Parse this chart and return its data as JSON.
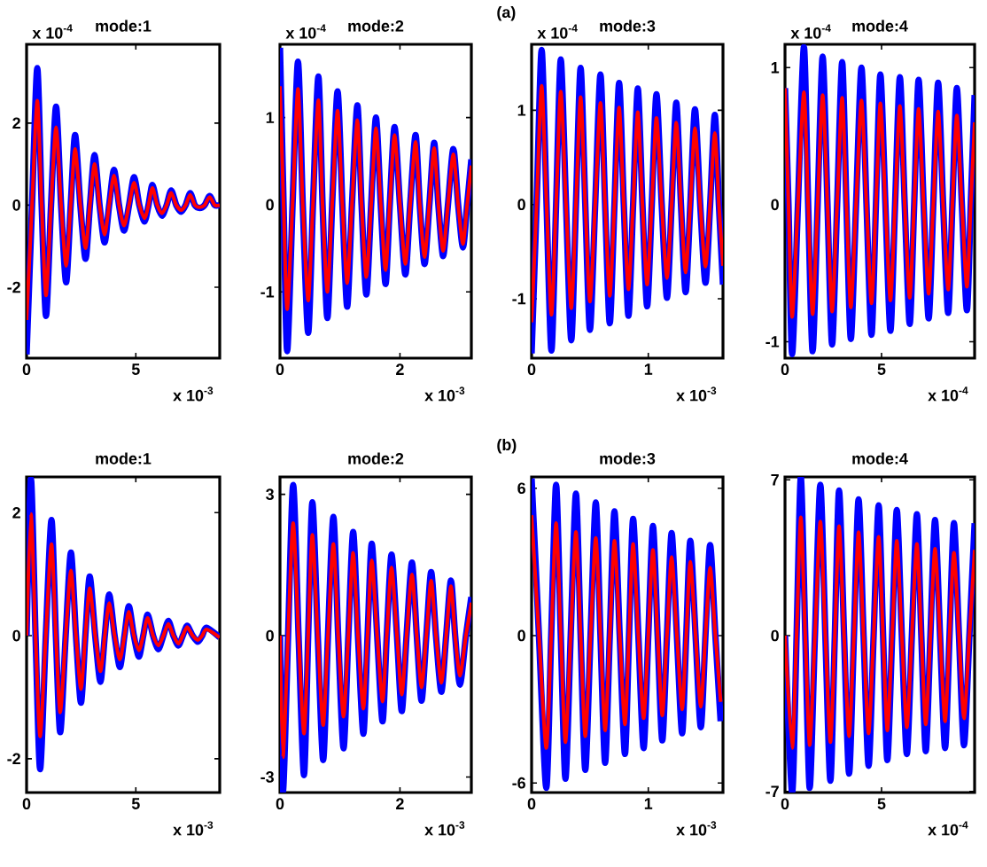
{
  "chart_data": [
    {
      "type": "line",
      "title": "mode:1",
      "xlabel": "x 10$^{-3}$",
      "ylabel": "x 10$^{-4}$",
      "xlim": [
        0,
        8.84
      ],
      "ylim": [
        -3.73,
        3.92
      ],
      "xticks": [
        0,
        5
      ],
      "yticks": [
        -2,
        0,
        2
      ],
      "x": [
        0,
        0.25,
        0.49,
        0.69,
        0.89,
        1.12,
        1.35,
        1.58,
        1.81,
        2.02,
        2.22,
        2.46,
        2.7,
        2.9,
        3.11,
        3.34,
        3.57,
        3.78,
        4.0,
        4.23,
        4.46,
        4.69,
        4.92,
        5.16,
        5.4,
        5.58,
        5.76,
        5.98,
        6.2,
        6.41,
        6.62,
        6.85,
        7.08,
        7.28,
        7.49,
        7.7,
        7.92,
        8.15,
        8.38,
        8.61,
        8.84
      ],
      "series": [
        {
          "color": "#0000ff",
          "values": [
            -3.64,
            0,
            3.34,
            0,
            -2.7,
            0,
            2.4,
            0,
            -1.88,
            0,
            1.71,
            0,
            -1.31,
            0,
            1.22,
            0,
            -0.91,
            0,
            0.86,
            0,
            -0.62,
            0,
            0.68,
            0,
            -0.4,
            0,
            0.49,
            0,
            -0.26,
            0,
            0.36,
            0,
            -0.16,
            0,
            0.29,
            0,
            -0.07,
            0,
            0.22,
            0,
            0
          ]
        },
        {
          "color": "#ff0000",
          "values": [
            -2.8,
            0,
            2.55,
            0,
            -2.2,
            0,
            1.9,
            0,
            -1.48,
            0,
            1.37,
            0,
            -1.05,
            0,
            1.0,
            0,
            -0.72,
            0,
            0.72,
            0,
            -0.5,
            0,
            0.55,
            0,
            -0.32,
            0,
            0.42,
            0,
            -0.2,
            0,
            0.3,
            0,
            -0.12,
            0,
            0.25,
            0,
            -0.05,
            0,
            0.2,
            0,
            0
          ]
        }
      ]
    },
    {
      "type": "line",
      "title": "mode:2",
      "xlabel": "x 10$^{-3}$",
      "ylabel": "x 10$^{-4}$",
      "annotations": [
        "(a)"
      ],
      "xlim": [
        0,
        3.19
      ],
      "ylim": [
        -1.76,
        1.84
      ],
      "xticks": [
        0,
        2
      ],
      "yticks": [
        -1,
        0,
        1
      ],
      "x": [
        0,
        0.06,
        0.12,
        0.21,
        0.3,
        0.38,
        0.47,
        0.55,
        0.64,
        0.71,
        0.79,
        0.87,
        0.96,
        1.04,
        1.12,
        1.2,
        1.29,
        1.36,
        1.44,
        1.52,
        1.6,
        1.68,
        1.76,
        1.83,
        1.91,
        2.0,
        2.09,
        2.17,
        2.26,
        2.33,
        2.41,
        2.49,
        2.57,
        2.64,
        2.72,
        2.8,
        2.89,
        2.97,
        3.05,
        3.12,
        3.19
      ],
      "series": [
        {
          "color": "#0000ff",
          "values": [
            1.8,
            0,
            -1.68,
            0,
            1.64,
            0,
            -1.47,
            0,
            1.47,
            0,
            -1.3,
            0,
            1.3,
            0,
            -1.17,
            0,
            1.14,
            0,
            -1.03,
            0,
            1.0,
            0,
            -0.91,
            0,
            0.89,
            0,
            -0.8,
            0,
            0.8,
            0,
            -0.68,
            0,
            0.71,
            0,
            -0.59,
            0,
            0.64,
            0,
            -0.49,
            0,
            0.52
          ]
        },
        {
          "color": "#ff0000",
          "values": [
            1.36,
            0,
            -1.2,
            0,
            1.33,
            0,
            -1.1,
            0,
            1.2,
            0,
            -1.0,
            0,
            1.08,
            0,
            -0.9,
            0,
            0.97,
            0,
            -0.83,
            0,
            0.88,
            0,
            -0.75,
            0,
            0.8,
            0,
            -0.68,
            0,
            0.72,
            0,
            -0.6,
            0,
            0.65,
            0,
            -0.53,
            0,
            0.58,
            0,
            -0.45,
            0,
            0.45
          ]
        }
      ]
    },
    {
      "type": "line",
      "title": "mode:3",
      "xlabel": "x 10$^{-3}$",
      "ylabel": "x 10$^{-4}$",
      "xlim": [
        0,
        1.64
      ],
      "ylim": [
        -1.63,
        1.7
      ],
      "xticks": [
        0,
        1
      ],
      "yticks": [
        -1,
        0,
        1
      ],
      "x": [
        0,
        0.043,
        0.086,
        0.128,
        0.17,
        0.21,
        0.25,
        0.295,
        0.34,
        0.38,
        0.42,
        0.46,
        0.5,
        0.545,
        0.59,
        0.63,
        0.67,
        0.71,
        0.75,
        0.79,
        0.83,
        0.87,
        0.91,
        0.95,
        0.99,
        1.03,
        1.07,
        1.115,
        1.16,
        1.2,
        1.24,
        1.28,
        1.32,
        1.36,
        1.4,
        1.445,
        1.49,
        1.53,
        1.57,
        1.605,
        1.64
      ],
      "series": [
        {
          "color": "#0000ff",
          "values": [
            -1.58,
            0,
            1.64,
            0,
            -1.55,
            0,
            1.54,
            0,
            -1.44,
            0,
            1.45,
            0,
            -1.33,
            0,
            1.38,
            0,
            -1.26,
            0,
            1.29,
            0,
            -1.18,
            0,
            1.23,
            0,
            -1.08,
            0,
            1.17,
            0,
            -0.99,
            0,
            1.08,
            0,
            -0.93,
            0,
            1.01,
            0,
            -0.83,
            0,
            0.95,
            0,
            -0.85
          ]
        },
        {
          "color": "#ff0000",
          "values": [
            -1.25,
            0,
            1.26,
            0,
            -1.17,
            0,
            1.2,
            0,
            -1.1,
            0,
            1.14,
            0,
            -1.03,
            0,
            1.08,
            0,
            -0.97,
            0,
            1.03,
            0,
            -0.9,
            0,
            0.98,
            0,
            -0.85,
            0,
            0.92,
            0,
            -0.78,
            0,
            0.87,
            0,
            -0.72,
            0,
            0.81,
            0,
            -0.66,
            0,
            0.76,
            0,
            -0.65
          ]
        }
      ]
    },
    {
      "type": "line",
      "title": "mode:4",
      "xlabel": "x 10$^{-4}$",
      "ylabel": "x 10$^{-4}$",
      "xlim": [
        0,
        9.82
      ],
      "ylim": [
        -1.12,
        1.17
      ],
      "xticks": [
        0,
        5
      ],
      "yticks": [
        -1,
        0,
        1
      ],
      "x": [
        0,
        0.18,
        0.37,
        0.67,
        0.98,
        1.2,
        1.43,
        1.69,
        1.95,
        2.2,
        2.44,
        2.7,
        2.96,
        3.18,
        3.41,
        3.68,
        3.96,
        4.22,
        4.48,
        4.71,
        4.94,
        5.2,
        5.46,
        5.7,
        5.95,
        6.2,
        6.46,
        6.69,
        6.92,
        7.18,
        7.44,
        7.68,
        7.93,
        8.19,
        8.45,
        8.67,
        8.9,
        9.16,
        9.42,
        9.62,
        9.82
      ],
      "series": [
        {
          "color": "#0000ff",
          "values": [
            0.85,
            0,
            -1.09,
            0,
            1.15,
            0,
            -1.07,
            0,
            1.08,
            0,
            -1.02,
            0,
            1.04,
            0,
            -0.98,
            0,
            1.0,
            0,
            -0.95,
            0,
            0.95,
            0,
            -0.92,
            0,
            0.93,
            0,
            -0.87,
            0,
            0.91,
            0,
            -0.83,
            0,
            0.89,
            0,
            -0.79,
            0,
            0.85,
            0,
            -0.77,
            0,
            0.8
          ]
        },
        {
          "color": "#ff0000",
          "values": [
            0.85,
            0,
            -0.82,
            0,
            0.82,
            0,
            -0.8,
            0,
            0.8,
            0,
            -0.78,
            0,
            0.78,
            0,
            -0.75,
            0,
            0.76,
            0,
            -0.72,
            0,
            0.74,
            0,
            -0.7,
            0,
            0.72,
            0,
            -0.68,
            0,
            0.7,
            0,
            -0.65,
            0,
            0.68,
            0,
            -0.62,
            0,
            0.65,
            0,
            -0.6,
            0,
            0.6
          ]
        }
      ]
    },
    {
      "type": "line",
      "title": "mode:1",
      "xlabel": "x 10$^{-3}$",
      "xlim": [
        0,
        8.84
      ],
      "ylim": [
        -2.55,
        2.58
      ],
      "xticks": [
        0,
        5
      ],
      "yticks": [
        -2,
        0,
        2
      ],
      "x": [
        0,
        0.2,
        0.41,
        0.62,
        0.88,
        1.14,
        1.34,
        1.54,
        1.79,
        2.03,
        2.26,
        2.49,
        2.69,
        2.89,
        3.14,
        3.38,
        3.58,
        3.78,
        4.03,
        4.27,
        4.48,
        4.68,
        4.91,
        5.14,
        5.34,
        5.54,
        5.79,
        6.03,
        6.26,
        6.49,
        6.72,
        6.95,
        7.15,
        7.35,
        7.6,
        7.84,
        8.04,
        8.24,
        8.84
      ],
      "series": [
        {
          "color": "#0000ff",
          "values": [
            0,
            2.55,
            0,
            -2.17,
            0,
            1.88,
            0,
            -1.57,
            0,
            1.35,
            0,
            -1.09,
            0,
            0.96,
            0,
            -0.75,
            0,
            0.67,
            0,
            -0.51,
            0,
            0.48,
            0,
            -0.34,
            0,
            0.34,
            0,
            -0.22,
            0,
            0.24,
            0,
            -0.16,
            0,
            0.16,
            0,
            -0.1,
            0,
            0.13,
            -0.03
          ]
        },
        {
          "color": "#ff0000",
          "values": [
            0,
            1.98,
            0,
            -1.64,
            0,
            1.49,
            0,
            -1.25,
            0,
            1.06,
            0,
            -0.87,
            0,
            0.77,
            0,
            -0.58,
            0,
            0.53,
            0,
            -0.39,
            0,
            0.39,
            0,
            -0.24,
            0,
            0.29,
            0,
            -0.16,
            0,
            0.19,
            0,
            -0.13,
            0,
            0.14,
            0,
            -0.07,
            0,
            0.1,
            -0.03
          ]
        }
      ]
    },
    {
      "type": "line",
      "title": "mode:2",
      "xlabel": "x 10$^{-3}$",
      "annotations": [
        "(b)"
      ],
      "xlim": [
        0,
        3.19
      ],
      "ylim": [
        -3.33,
        3.37
      ],
      "xticks": [
        0,
        2
      ],
      "yticks": [
        -3,
        0,
        3
      ],
      "x": [
        0,
        0.05,
        0.135,
        0.22,
        0.31,
        0.4,
        0.47,
        0.54,
        0.63,
        0.72,
        0.8,
        0.89,
        0.97,
        1.06,
        1.14,
        1.22,
        1.3,
        1.39,
        1.46,
        1.53,
        1.62,
        1.71,
        1.78,
        1.86,
        1.95,
        2.03,
        2.11,
        2.2,
        2.28,
        2.36,
        2.44,
        2.52,
        2.6,
        2.69,
        2.77,
        2.85,
        2.92,
        3.0,
        3.1,
        3.19
      ],
      "series": [
        {
          "color": "#0000ff",
          "values": [
            0,
            -3.3,
            0,
            3.2,
            0,
            -2.96,
            0,
            2.83,
            0,
            -2.64,
            0,
            2.52,
            0,
            -2.39,
            0,
            2.2,
            0,
            -2.08,
            0,
            1.95,
            0,
            -1.82,
            0,
            1.72,
            0,
            -1.6,
            0,
            1.55,
            0,
            -1.38,
            0,
            1.35,
            0,
            -1.19,
            0,
            1.17,
            0,
            -1.04,
            0,
            0.82
          ]
        },
        {
          "color": "#ff0000",
          "values": [
            0,
            -2.58,
            0,
            2.39,
            0,
            -2.08,
            0,
            2.14,
            0,
            -1.9,
            0,
            1.95,
            0,
            -1.72,
            0,
            1.76,
            0,
            -1.55,
            0,
            1.6,
            0,
            -1.4,
            0,
            1.45,
            0,
            -1.25,
            0,
            1.3,
            0,
            -1.1,
            0,
            1.17,
            0,
            -1.0,
            0,
            1.05,
            0,
            -0.85,
            0,
            0.7
          ]
        }
      ]
    },
    {
      "type": "line",
      "title": "mode:3",
      "xlabel": "x 10$^{-3}$",
      "xlim": [
        0,
        1.64
      ],
      "ylim": [
        -6.39,
        6.46
      ],
      "xticks": [
        0,
        1
      ],
      "yticks": [
        -6,
        0,
        6
      ],
      "x": [
        0,
        0.063,
        0.126,
        0.168,
        0.21,
        0.25,
        0.29,
        0.335,
        0.38,
        0.42,
        0.46,
        0.505,
        0.55,
        0.59,
        0.63,
        0.67,
        0.71,
        0.755,
        0.8,
        0.835,
        0.87,
        0.915,
        0.96,
        1.0,
        1.04,
        1.08,
        1.12,
        1.16,
        1.2,
        1.245,
        1.29,
        1.325,
        1.36,
        1.405,
        1.45,
        1.49,
        1.53,
        1.575,
        1.62
      ],
      "series": [
        {
          "color": "#0000ff",
          "values": [
            6.4,
            0,
            -6.2,
            0,
            6.14,
            0,
            -5.83,
            0,
            5.78,
            0,
            -5.47,
            0,
            5.42,
            0,
            -5.18,
            0,
            5.06,
            0,
            -4.82,
            0,
            4.75,
            0,
            -4.58,
            0,
            4.46,
            0,
            -4.27,
            0,
            4.17,
            0,
            -3.98,
            0,
            3.86,
            0,
            -3.73,
            0,
            3.69,
            0,
            -3.49
          ]
        },
        {
          "color": "#ff0000",
          "values": [
            4.9,
            0,
            -4.58,
            0,
            4.58,
            0,
            -4.34,
            0,
            4.22,
            0,
            -4.1,
            0,
            3.98,
            0,
            -3.86,
            0,
            3.86,
            0,
            -3.62,
            0,
            3.73,
            0,
            -3.37,
            0,
            3.49,
            0,
            -3.25,
            0,
            3.2,
            0,
            -3.01,
            0,
            3.01,
            0,
            -2.9,
            0,
            2.77,
            0,
            -2.7
          ]
        }
      ]
    },
    {
      "type": "line",
      "title": "mode:4",
      "xlabel": "x 10$^{-4}$",
      "xlim": [
        0,
        9.82
      ],
      "ylim": [
        -7.05,
        7.13
      ],
      "xticks": [
        0,
        5
      ],
      "yticks": [
        -7,
        0,
        7
      ],
      "x": [
        0,
        0.37,
        0.6,
        0.82,
        1.05,
        1.28,
        1.55,
        1.83,
        2.09,
        2.35,
        2.58,
        2.8,
        3.06,
        3.32,
        3.57,
        3.81,
        4.07,
        4.33,
        4.59,
        4.85,
        5.08,
        5.3,
        5.55,
        5.79,
        6.05,
        6.31,
        6.57,
        6.83,
        7.06,
        7.29,
        7.53,
        7.77,
        8.03,
        8.29,
        8.52,
        8.75,
        9.01,
        9.27,
        9.55,
        9.82
      ],
      "series": [
        {
          "color": "#0000ff",
          "values": [
            0,
            -7.05,
            0,
            7.1,
            0,
            -6.84,
            0,
            6.78,
            0,
            -6.52,
            0,
            6.52,
            0,
            -6.2,
            0,
            6.12,
            0,
            -5.85,
            0,
            5.85,
            0,
            -5.59,
            0,
            5.64,
            0,
            -5.32,
            0,
            5.45,
            0,
            -5.19,
            0,
            5.19,
            0,
            -5.05,
            0,
            5.05,
            0,
            -4.92,
            0,
            5.05
          ]
        },
        {
          "color": "#ff0000",
          "values": [
            0,
            -5.05,
            0,
            5.32,
            0,
            -4.92,
            0,
            5.13,
            0,
            -4.79,
            0,
            4.92,
            0,
            -4.52,
            0,
            4.65,
            0,
            -4.39,
            0,
            4.44,
            0,
            -4.26,
            0,
            4.26,
            0,
            -4.12,
            0,
            4.12,
            0,
            -3.99,
            0,
            3.9,
            0,
            -3.85,
            0,
            3.72,
            0,
            -3.72,
            0,
            3.85
          ]
        }
      ]
    }
  ]
}
